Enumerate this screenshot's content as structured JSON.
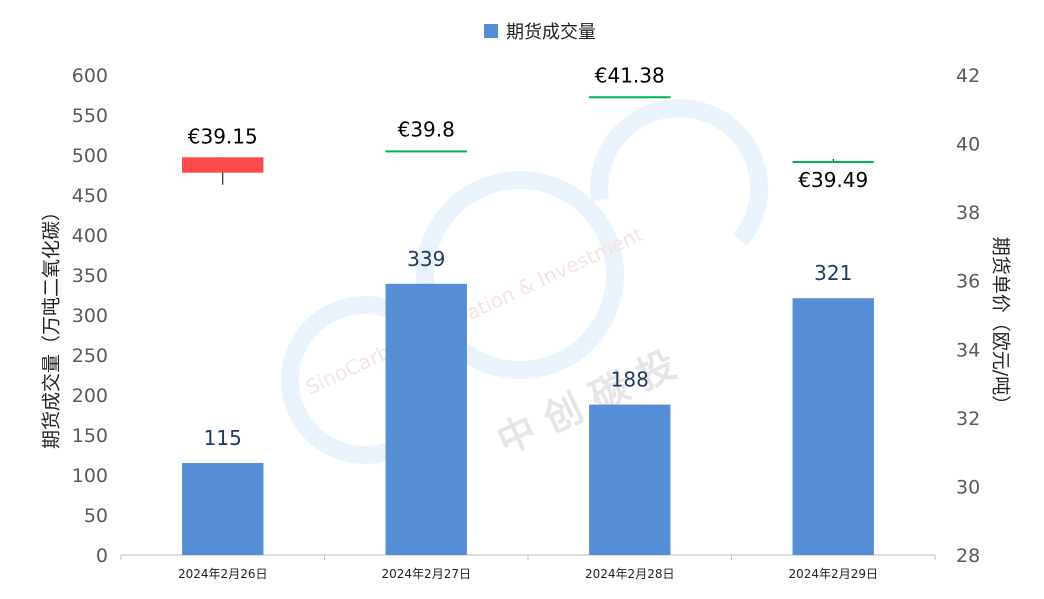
{
  "chart_data": {
    "type": "bar",
    "categories": [
      "2024年2月26日",
      "2024年2月27日",
      "2024年2月28日",
      "2024年2月29日"
    ],
    "series": [
      {
        "name": "期货成交量",
        "axis": "left",
        "values": [
          115,
          339,
          188,
          321
        ],
        "data_labels": [
          "115",
          "339",
          "188",
          "321"
        ],
        "color": "#558ED5"
      },
      {
        "type": "candlestick",
        "axis": "right",
        "close": [
          39.15,
          39.8,
          41.38,
          39.49
        ],
        "open": [
          39.6,
          39.8,
          41.38,
          39.49
        ],
        "high": [
          39.6,
          39.8,
          41.38,
          39.55
        ],
        "low": [
          38.8,
          39.8,
          41.38,
          39.49
        ],
        "data_labels": [
          "€39.15",
          "€39.8",
          "€41.38",
          "€39.49"
        ],
        "up_color": "#00B050",
        "down_color": "#FF4B4B"
      }
    ],
    "ylabel": "期货成交量（万吨二氧化碳）",
    "y2label": "期货单价（欧元/吨）",
    "ylim": [
      0,
      600
    ],
    "y2lim": [
      28,
      42
    ],
    "yticks": [
      "0",
      "50",
      "100",
      "150",
      "200",
      "250",
      "300",
      "350",
      "400",
      "450",
      "500",
      "550",
      "600"
    ],
    "y2ticks": [
      "28",
      "30",
      "32",
      "34",
      "36",
      "38",
      "40",
      "42"
    ],
    "legend": {
      "position": "top-center",
      "entries": [
        "期货成交量"
      ]
    },
    "grid": false
  },
  "watermark": {
    "text_en": "SinoCarbon Innovation & Investment",
    "text_cn": "中 创 碳 投"
  }
}
